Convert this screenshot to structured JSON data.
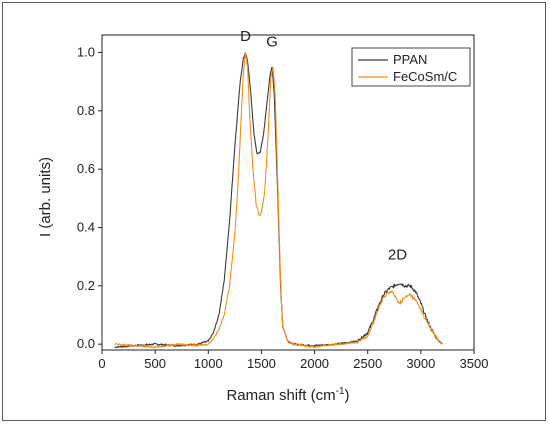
{
  "chart_data": {
    "type": "line",
    "xlabel": "Raman shift (cm",
    "xlabel_sup": "-1",
    "xlabel_end": ")",
    "ylabel": "I (arb. units)",
    "xlim": [
      0,
      3500
    ],
    "ylim": [
      -0.02,
      1.06
    ],
    "xticks": [
      "0",
      "500",
      "1000",
      "1500",
      "2000",
      "2500",
      "3000",
      "3500"
    ],
    "xtick_values": [
      0,
      500,
      1000,
      1500,
      2000,
      2500,
      3000,
      3500
    ],
    "yticks": [
      "0.0",
      "0.2",
      "0.4",
      "0.6",
      "0.8",
      "1.0"
    ],
    "ytick_values": [
      0,
      0.2,
      0.4,
      0.6,
      0.8,
      1.0
    ],
    "grid": false,
    "legend_position": "top-right",
    "annotations": [
      {
        "text": "D",
        "x": 1350,
        "y": 1.04
      },
      {
        "text": "G",
        "x": 1600,
        "y": 1.02
      },
      {
        "text": "2D",
        "x": 2780,
        "y": 0.29
      }
    ],
    "series": [
      {
        "name": "PPAN",
        "color": "#3a3a3a",
        "x": [
          120,
          300,
          500,
          700,
          900,
          1000,
          1050,
          1100,
          1150,
          1200,
          1250,
          1300,
          1330,
          1350,
          1370,
          1400,
          1430,
          1460,
          1490,
          1520,
          1550,
          1580,
          1600,
          1620,
          1650,
          1680,
          1700,
          1750,
          1800,
          2000,
          2200,
          2400,
          2500,
          2550,
          2600,
          2650,
          2700,
          2750,
          2800,
          2850,
          2900,
          2950,
          3000,
          3050,
          3100,
          3150,
          3200
        ],
        "y": [
          -0.01,
          -0.005,
          0.0,
          -0.005,
          0.0,
          0.01,
          0.04,
          0.1,
          0.22,
          0.42,
          0.68,
          0.9,
          0.98,
          1.0,
          0.97,
          0.86,
          0.72,
          0.65,
          0.66,
          0.72,
          0.82,
          0.92,
          0.95,
          0.86,
          0.55,
          0.2,
          0.06,
          0.01,
          0.0,
          -0.005,
          0.0,
          0.01,
          0.04,
          0.08,
          0.13,
          0.17,
          0.19,
          0.2,
          0.21,
          0.2,
          0.2,
          0.18,
          0.14,
          0.09,
          0.05,
          0.02,
          0.0
        ]
      },
      {
        "name": "FeCoSm/C",
        "color": "#f0901a",
        "x": [
          120,
          300,
          500,
          700,
          900,
          1000,
          1050,
          1100,
          1150,
          1200,
          1250,
          1280,
          1310,
          1330,
          1350,
          1370,
          1390,
          1420,
          1450,
          1480,
          1500,
          1530,
          1560,
          1590,
          1610,
          1630,
          1650,
          1680,
          1700,
          1750,
          1800,
          2000,
          2200,
          2400,
          2500,
          2550,
          2600,
          2650,
          2700,
          2730,
          2760,
          2800,
          2850,
          2900,
          2950,
          3000,
          3050,
          3100,
          3150,
          3200
        ],
        "y": [
          0.0,
          -0.005,
          -0.01,
          0.0,
          -0.005,
          0.0,
          0.02,
          0.05,
          0.1,
          0.2,
          0.38,
          0.55,
          0.78,
          0.93,
          1.0,
          0.95,
          0.78,
          0.6,
          0.48,
          0.44,
          0.45,
          0.52,
          0.7,
          0.92,
          0.95,
          0.85,
          0.6,
          0.22,
          0.06,
          0.01,
          0.0,
          -0.01,
          0.0,
          0.005,
          0.03,
          0.07,
          0.12,
          0.16,
          0.18,
          0.18,
          0.16,
          0.14,
          0.16,
          0.17,
          0.15,
          0.12,
          0.08,
          0.05,
          0.02,
          0.0
        ]
      }
    ]
  }
}
